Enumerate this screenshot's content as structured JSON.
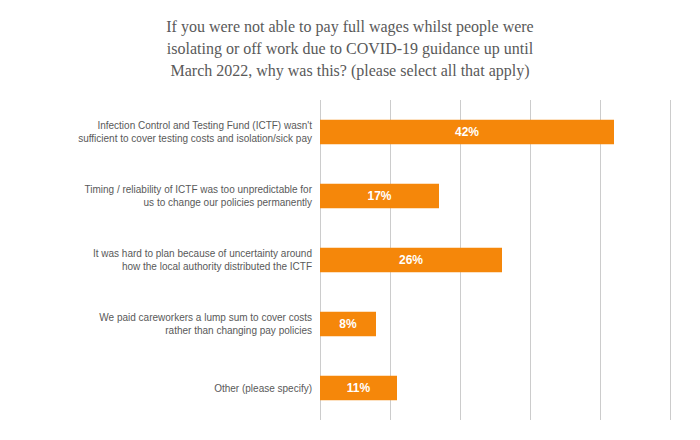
{
  "chart_data": {
    "type": "bar",
    "orientation": "horizontal",
    "title": "If you were not able to pay full wages whilst people were\nisolating or off work due to COVID-19 guidance up until\nMarch 2022, why was this? (please select all that apply)",
    "categories": [
      "Infection Control and Testing Fund (ICTF) wasn't\nsufficient to cover testing costs and isolation/sick pay",
      "Timing / reliability of ICTF was too unpredictable for\nus to change our policies permanently",
      "It was hard to plan because of uncertainty around\nhow the local authority distributed the ICTF",
      "We paid careworkers a lump sum to cover costs\nrather than changing pay policies",
      "Other (please specify)"
    ],
    "values": [
      42,
      17,
      26,
      8,
      11
    ],
    "value_labels": [
      "42%",
      "17%",
      "26%",
      "8%",
      "11%"
    ],
    "data_labels": true,
    "color": "#F5870A",
    "xlim": [
      0,
      50
    ],
    "xticks": [
      0,
      10,
      20,
      30,
      40,
      50
    ],
    "grid": true,
    "tick_labels": "y"
  }
}
